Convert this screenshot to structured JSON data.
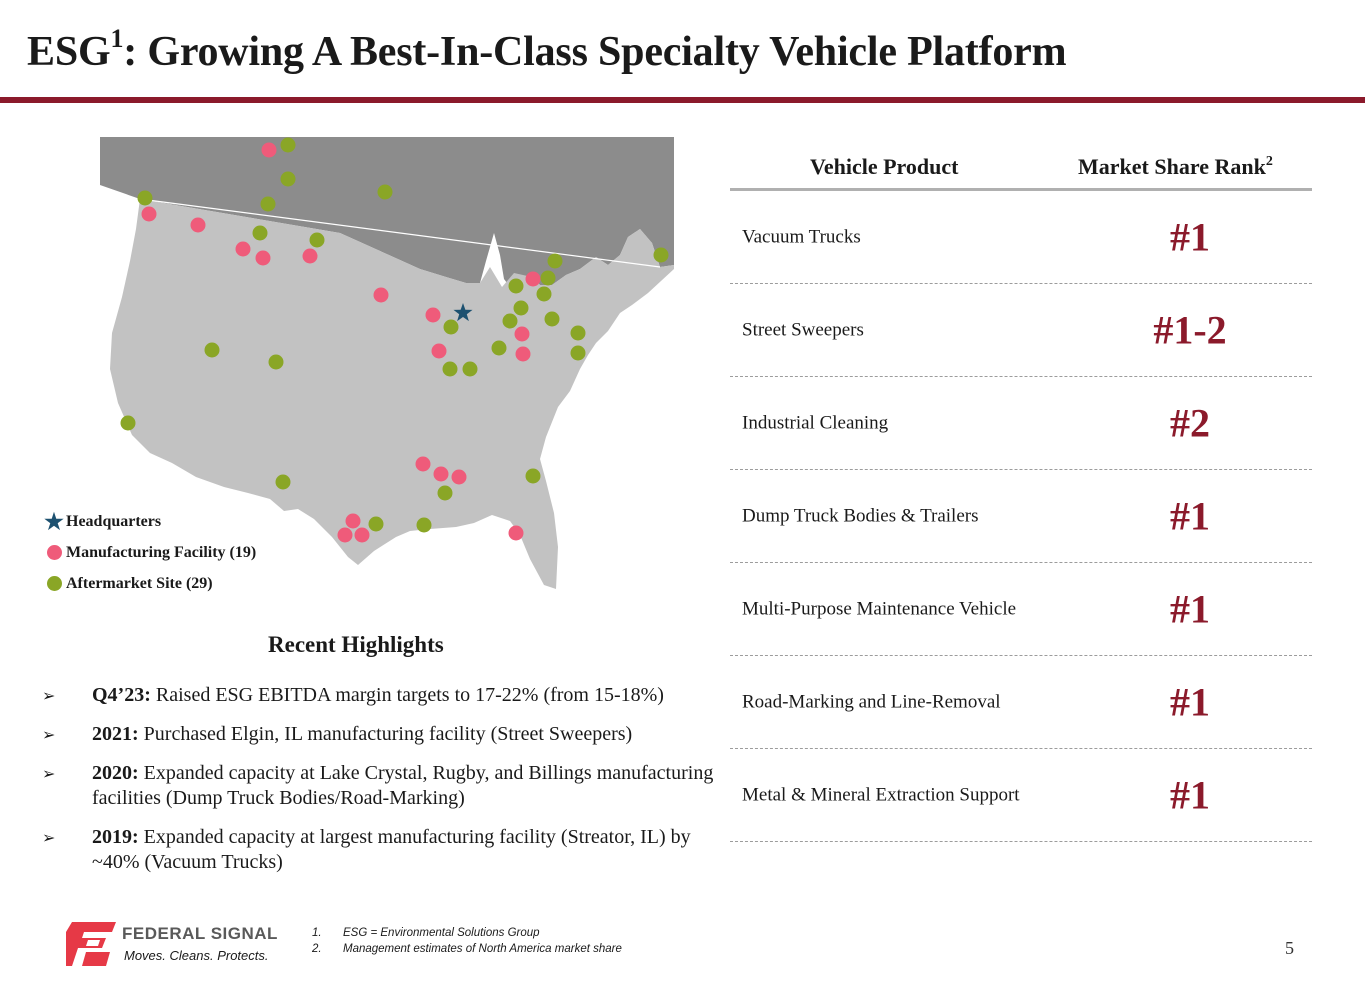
{
  "header": {
    "title_main": "ESG",
    "title_sup": "1",
    "title_rest": ": Growing A Best-In-Class Specialty Vehicle Platform"
  },
  "colors": {
    "accent": "#8b1a2b",
    "manufacturing": "#ef5b7a",
    "aftermarket": "#8aa626",
    "headquarters": "#1d5170",
    "us_land": "#c2c2c2",
    "canada_land": "#8c8c8c"
  },
  "map": {
    "legend": [
      {
        "icon": "star-icon",
        "label": "Headquarters"
      },
      {
        "icon": "red-dot-icon",
        "label": "Manufacturing Facility (19)"
      },
      {
        "icon": "green-dot-icon",
        "label": "Aftermarket Site (29)"
      }
    ]
  },
  "highlights": {
    "title": "Recent Highlights",
    "items": [
      {
        "year": "Q4’23:",
        "text": " Raised ESG EBITDA margin targets to 17-22% (from 15-18%)"
      },
      {
        "year": "2021:",
        "text": " Purchased Elgin, IL manufacturing facility (Street Sweepers)"
      },
      {
        "year": "2020:",
        "text": " Expanded capacity at Lake Crystal, Rugby, and Billings manufacturing facilities (Dump Truck Bodies/Road-Marking)"
      },
      {
        "year": "2019:",
        "text": " Expanded capacity at largest manufacturing facility (Streator, IL) by ~40% (Vacuum Trucks)"
      }
    ]
  },
  "table": {
    "header_product": "Vehicle Product",
    "header_rank": "Market Share Rank",
    "header_rank_sup": "2",
    "rows": [
      {
        "product": "Vacuum Trucks",
        "rank": "#1"
      },
      {
        "product": "Street Sweepers",
        "rank": "#1-2"
      },
      {
        "product": "Industrial Cleaning",
        "rank": "#2"
      },
      {
        "product": "Dump Truck Bodies & Trailers",
        "rank": "#1"
      },
      {
        "product": "Multi-Purpose Maintenance Vehicle",
        "rank": "#1"
      },
      {
        "product": "Road-Marking and Line-Removal",
        "rank": "#1"
      },
      {
        "product": "Metal & Mineral Extraction Support",
        "rank": "#1"
      }
    ]
  },
  "footer": {
    "logo_name": "FEDERAL SIGNAL",
    "logo_tagline": "Moves. Cleans. Protects.",
    "footnotes": [
      {
        "num": "1.",
        "text": "ESG = Environmental Solutions Group"
      },
      {
        "num": "2.",
        "text": "Management estimates of North America market share"
      }
    ],
    "page_number": "5"
  }
}
